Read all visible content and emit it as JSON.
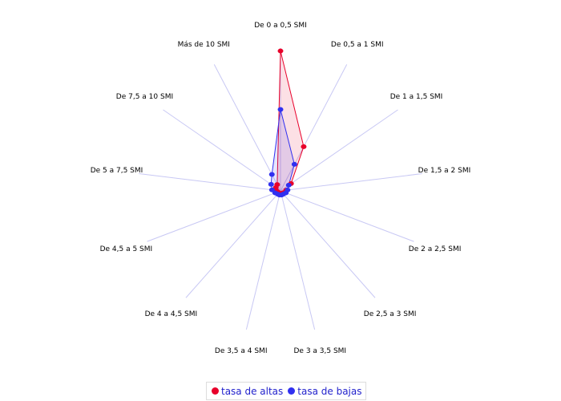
{
  "chart_data": {
    "type": "radar",
    "categories": [
      "De 0 a 0,5 SMI",
      "De 0,5 a 1 SMI",
      "De 1 a 1,5 SMI",
      "De 1,5 a 2 SMI",
      "De 2 a 2,5 SMI",
      "De 2,5 a 3 SMI",
      "De 3 a 3,5 SMI",
      "De 3,5 a 4 SMI",
      "De 4 a 4,5 SMI",
      "De 4,5 a 5 SMI",
      "De 5 a 7,5 SMI",
      "De 7,5 a 10 SMI",
      "Más de 10 SMI"
    ],
    "series": [
      {
        "name": "tasa de altas",
        "color": "#e8002a",
        "values": [
          98,
          35,
          9,
          4,
          3,
          2,
          2,
          2,
          2,
          2,
          3,
          4,
          5
        ]
      },
      {
        "name": "tasa de bajas",
        "color": "#3030f0",
        "values": [
          57,
          21,
          7,
          5,
          4,
          3,
          3,
          3,
          3,
          4,
          6,
          8,
          13
        ]
      }
    ],
    "ylim": [
      0,
      100
    ],
    "legend": "bottom"
  }
}
